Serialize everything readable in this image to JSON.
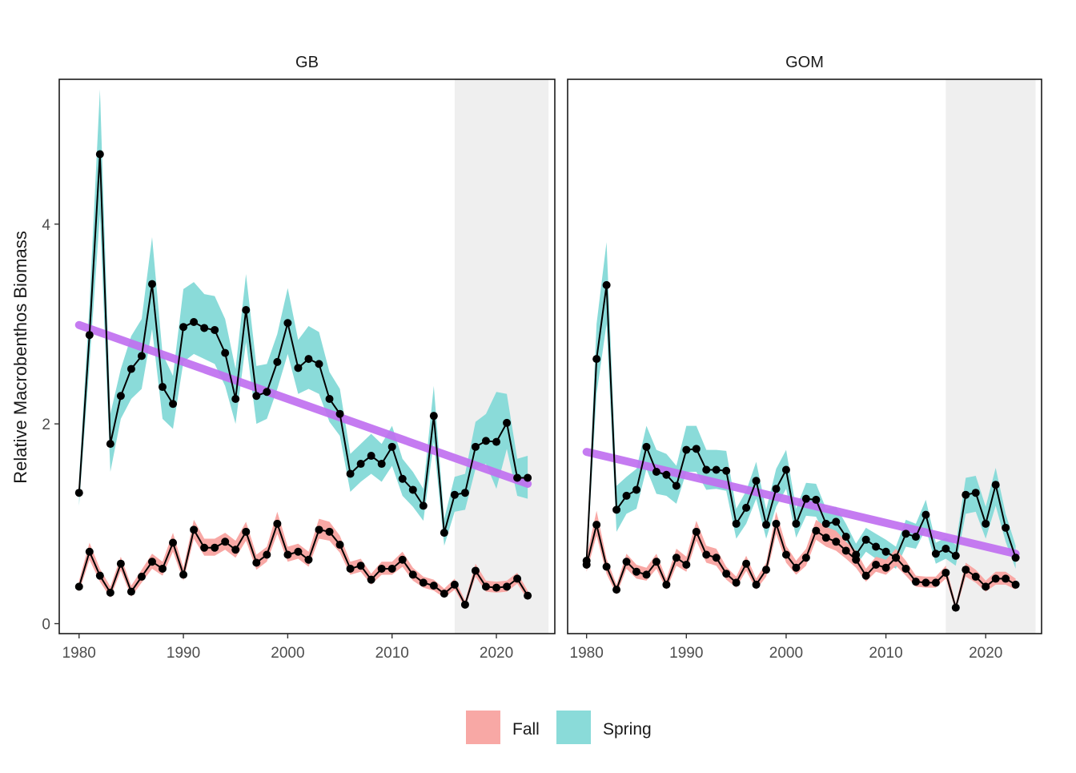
{
  "chart_data": {
    "type": "line",
    "ylabel": "Relative Macrobenthos Biomass",
    "xlabel": "",
    "xlim": [
      1978.1,
      2025.6
    ],
    "ylim": [
      -0.1,
      5.45
    ],
    "x_ticks": [
      1980,
      1990,
      2000,
      2010,
      2020
    ],
    "x_tick_labels": [
      "1980",
      "1990",
      "2000",
      "2010",
      "2020"
    ],
    "y_ticks": [
      0,
      2,
      4
    ],
    "y_tick_labels": [
      "0",
      "2",
      "4"
    ],
    "grid": false,
    "shaded_period": [
      2016,
      2025
    ],
    "legend": {
      "position": "bottom",
      "entries": [
        {
          "name": "Fall",
          "color": "#F8A8A5"
        },
        {
          "name": "Spring",
          "color": "#8ADBD9"
        }
      ]
    },
    "colors": {
      "fall_band": "#F8A8A5",
      "spring_band": "#8ADBD9",
      "trend": "#C070F0",
      "line": "#000000",
      "shade": "#EFEFEF"
    },
    "panels": [
      {
        "name": "GB",
        "x": [
          1980,
          1981,
          1982,
          1983,
          1984,
          1985,
          1986,
          1987,
          1988,
          1989,
          1990,
          1991,
          1992,
          1993,
          1994,
          1995,
          1996,
          1997,
          1998,
          1999,
          2000,
          2001,
          2002,
          2003,
          2004,
          2005,
          2006,
          2007,
          2008,
          2009,
          2010,
          2011,
          2012,
          2013,
          2014,
          2015,
          2016,
          2017,
          2018,
          2019,
          2020,
          2021,
          2022,
          2023
        ],
        "series": [
          {
            "name": "Spring",
            "values": [
              1.31,
              2.89,
              4.7,
              1.8,
              2.28,
              2.55,
              2.68,
              3.4,
              2.37,
              2.2,
              2.97,
              3.02,
              2.96,
              2.94,
              2.71,
              2.25,
              3.14,
              2.28,
              2.32,
              2.62,
              3.01,
              2.56,
              2.65,
              2.6,
              2.25,
              2.1,
              1.5,
              1.6,
              1.68,
              1.6,
              1.77,
              1.45,
              1.34,
              1.18,
              2.08,
              0.91,
              1.29,
              1.31,
              1.77,
              1.83,
              1.82,
              2.01,
              1.46,
              1.46
            ],
            "lower": [
              1.18,
              2.6,
              4.1,
              1.52,
              2.05,
              2.25,
              2.35,
              2.95,
              2.05,
              1.95,
              2.62,
              2.7,
              2.65,
              2.6,
              2.38,
              2.0,
              2.82,
              2.0,
              2.05,
              2.35,
              2.7,
              2.3,
              2.35,
              2.3,
              2.02,
              1.88,
              1.32,
              1.42,
              1.5,
              1.42,
              1.58,
              1.28,
              1.17,
              1.03,
              1.82,
              0.78,
              1.12,
              1.14,
              1.55,
              1.6,
              1.35,
              1.75,
              1.28,
              1.25
            ],
            "upper": [
              1.45,
              3.2,
              5.35,
              2.1,
              2.55,
              2.88,
              3.05,
              3.87,
              2.7,
              2.48,
              3.35,
              3.42,
              3.3,
              3.28,
              3.05,
              2.55,
              3.5,
              2.58,
              2.6,
              2.9,
              3.36,
              2.84,
              2.98,
              2.92,
              2.52,
              2.35,
              1.7,
              1.8,
              1.9,
              1.8,
              1.98,
              1.65,
              1.52,
              1.35,
              2.38,
              1.05,
              1.47,
              1.5,
              2.02,
              2.1,
              2.32,
              2.3,
              1.65,
              1.68
            ]
          },
          {
            "name": "Fall",
            "values": [
              0.37,
              0.72,
              0.48,
              0.31,
              0.6,
              0.32,
              0.47,
              0.62,
              0.55,
              0.81,
              0.49,
              0.94,
              0.76,
              0.76,
              0.82,
              0.74,
              0.92,
              0.61,
              0.69,
              1.0,
              0.69,
              0.72,
              0.64,
              0.94,
              0.92,
              0.79,
              0.55,
              0.58,
              0.44,
              0.55,
              0.55,
              0.64,
              0.49,
              0.41,
              0.38,
              0.3,
              0.39,
              0.19,
              0.53,
              0.37,
              0.36,
              0.37,
              0.45,
              0.28
            ],
            "lower": [
              0.32,
              0.64,
              0.42,
              0.26,
              0.53,
              0.27,
              0.41,
              0.55,
              0.48,
              0.72,
              0.43,
              0.85,
              0.68,
              0.68,
              0.74,
              0.66,
              0.83,
              0.54,
              0.62,
              0.9,
              0.62,
              0.65,
              0.57,
              0.85,
              0.83,
              0.71,
              0.49,
              0.52,
              0.39,
              0.49,
              0.49,
              0.57,
              0.43,
              0.36,
              0.33,
              0.26,
              0.34,
              0.16,
              0.47,
              0.32,
              0.31,
              0.32,
              0.4,
              0.24
            ],
            "upper": [
              0.43,
              0.81,
              0.55,
              0.37,
              0.67,
              0.38,
              0.54,
              0.7,
              0.62,
              0.91,
              0.56,
              1.04,
              0.85,
              0.85,
              0.91,
              0.83,
              1.02,
              0.69,
              0.77,
              1.12,
              0.77,
              0.8,
              0.72,
              1.05,
              1.02,
              0.88,
              0.62,
              0.65,
              0.5,
              0.62,
              0.62,
              0.72,
              0.56,
              0.47,
              0.44,
              0.35,
              0.45,
              0.23,
              0.6,
              0.43,
              0.42,
              0.43,
              0.51,
              0.33
            ]
          }
        ],
        "trend": {
          "x": [
            1980,
            2023
          ],
          "y": [
            2.99,
            1.4
          ]
        }
      },
      {
        "name": "GOM",
        "x": [
          1980,
          1981,
          1982,
          1983,
          1984,
          1985,
          1986,
          1987,
          1988,
          1989,
          1990,
          1991,
          1992,
          1993,
          1994,
          1995,
          1996,
          1997,
          1998,
          1999,
          2000,
          2001,
          2002,
          2003,
          2004,
          2005,
          2006,
          2007,
          2008,
          2009,
          2010,
          2011,
          2012,
          2013,
          2014,
          2015,
          2016,
          2017,
          2018,
          2019,
          2020,
          2021,
          2022,
          2023
        ],
        "series": [
          {
            "name": "Spring",
            "values": [
              0.63,
              2.65,
              3.39,
              1.14,
              1.28,
              1.34,
              1.77,
              1.52,
              1.49,
              1.38,
              1.74,
              1.75,
              1.54,
              1.54,
              1.53,
              1.0,
              1.16,
              1.43,
              0.99,
              1.35,
              1.54,
              1.0,
              1.25,
              1.24,
              1.0,
              1.02,
              0.87,
              0.69,
              0.84,
              0.77,
              0.72,
              0.66,
              0.9,
              0.87,
              1.09,
              0.7,
              0.75,
              0.68,
              1.29,
              1.31,
              1.0,
              1.39,
              0.96,
              0.66
            ],
            "lower": [
              0.55,
              2.3,
              3.0,
              0.92,
              1.1,
              1.15,
              1.55,
              1.3,
              1.28,
              1.2,
              1.52,
              1.52,
              1.34,
              1.35,
              1.33,
              0.85,
              1.0,
              1.25,
              0.85,
              1.17,
              1.35,
              0.86,
              1.08,
              1.07,
              0.86,
              0.88,
              0.74,
              0.58,
              0.72,
              0.65,
              0.61,
              0.55,
              0.77,
              0.75,
              0.95,
              0.6,
              0.65,
              0.58,
              1.1,
              1.12,
              0.85,
              1.18,
              0.82,
              0.55
            ],
            "upper": [
              0.72,
              3.0,
              3.82,
              1.38,
              1.47,
              1.55,
              1.98,
              1.74,
              1.7,
              1.58,
              1.98,
              1.98,
              1.74,
              1.74,
              1.73,
              1.15,
              1.33,
              1.62,
              1.14,
              1.55,
              1.74,
              1.15,
              1.41,
              1.4,
              1.15,
              1.17,
              1.0,
              0.8,
              0.96,
              0.9,
              0.84,
              0.77,
              1.04,
              1.0,
              1.24,
              0.81,
              0.86,
              0.79,
              1.46,
              1.48,
              1.17,
              1.56,
              1.1,
              0.78
            ]
          },
          {
            "name": "Fall",
            "values": [
              0.59,
              0.99,
              0.57,
              0.34,
              0.62,
              0.52,
              0.49,
              0.62,
              0.39,
              0.66,
              0.59,
              0.92,
              0.69,
              0.66,
              0.5,
              0.41,
              0.6,
              0.39,
              0.54,
              1.0,
              0.69,
              0.56,
              0.66,
              0.93,
              0.86,
              0.82,
              0.73,
              0.64,
              0.48,
              0.59,
              0.56,
              0.66,
              0.55,
              0.42,
              0.41,
              0.41,
              0.51,
              0.16,
              0.54,
              0.47,
              0.37,
              0.45,
              0.45,
              0.39
            ],
            "lower": [
              0.52,
              0.88,
              0.5,
              0.29,
              0.55,
              0.45,
              0.43,
              0.55,
              0.34,
              0.58,
              0.52,
              0.83,
              0.61,
              0.58,
              0.44,
              0.36,
              0.53,
              0.34,
              0.47,
              0.9,
              0.61,
              0.49,
              0.58,
              0.84,
              0.77,
              0.73,
              0.65,
              0.56,
              0.42,
              0.52,
              0.49,
              0.58,
              0.48,
              0.37,
              0.36,
              0.36,
              0.45,
              0.13,
              0.47,
              0.41,
              0.32,
              0.39,
              0.39,
              0.34
            ],
            "upper": [
              0.67,
              1.13,
              0.65,
              0.39,
              0.7,
              0.59,
              0.56,
              0.7,
              0.45,
              0.75,
              0.67,
              1.03,
              0.78,
              0.75,
              0.57,
              0.47,
              0.68,
              0.45,
              0.61,
              1.12,
              0.78,
              0.63,
              0.75,
              1.04,
              0.97,
              0.93,
              0.82,
              0.73,
              0.55,
              0.67,
              0.64,
              0.75,
              0.63,
              0.48,
              0.47,
              0.47,
              0.58,
              0.2,
              0.61,
              0.54,
              0.43,
              0.52,
              0.52,
              0.45
            ]
          }
        ],
        "trend": {
          "x": [
            1980,
            2023
          ],
          "y": [
            1.72,
            0.7
          ]
        }
      }
    ]
  }
}
